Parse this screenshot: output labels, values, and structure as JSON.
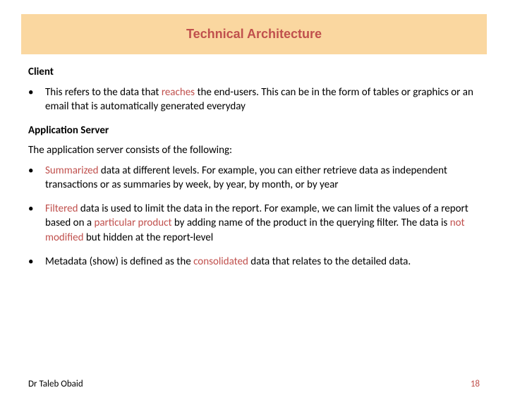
{
  "colors": {
    "title_bg": "#fad7a0",
    "title_text": "#c0504d",
    "body_text": "#000000",
    "highlight": "#c0504d",
    "page_num": "#c0504d",
    "background": "#ffffff"
  },
  "title": "Technical Architecture",
  "sections": {
    "client": {
      "heading": "Client",
      "bullet": {
        "pre": "This refers to the data that ",
        "hl1": "reaches",
        "post": " the end-users. This can be in the form of tables or graphics or an email that is automatically generated everyday"
      }
    },
    "appserver": {
      "heading": "Application Server",
      "intro": "The application server consists of the following:",
      "b1": {
        "hl1": "Summarized",
        "post": " data at different levels. For example, you can either retrieve data as independent transactions or as summaries by week, by year, by month, or by year"
      },
      "b2": {
        "hl1": "Filtered",
        "mid1": " data is used to limit the data in the report. For example, we can limit the values of a report based on a ",
        "hl2": "particular product",
        "mid2": " by adding name of the product in the querying filter. The data is ",
        "hl3": "not modified",
        "post": " but hidden at the report-level"
      },
      "b3": {
        "pre": "Metadata (show) is defined as the ",
        "hl1": "consolidated",
        "post": " data that relates to the detailed data."
      }
    }
  },
  "footer": {
    "author": "Dr Taleb Obaid",
    "page": "18"
  }
}
